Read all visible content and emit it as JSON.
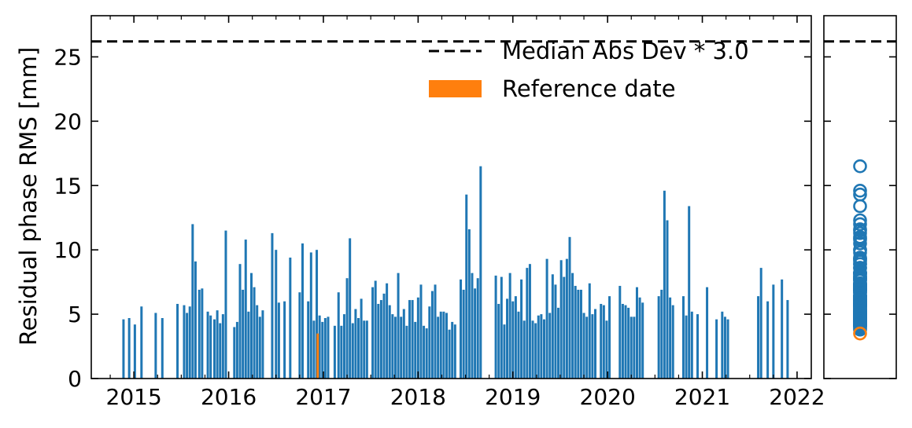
{
  "chart_data": {
    "type": "bar",
    "ylabel": "Residual phase RMS [mm]",
    "ylim": [
      0,
      28.2
    ],
    "xlim": [
      2014.55,
      2022.15
    ],
    "y_ticks": [
      "0",
      "5",
      "10",
      "15",
      "20",
      "25"
    ],
    "x_ticks": [
      "2015",
      "2016",
      "2017",
      "2018",
      "2019",
      "2020",
      "2021",
      "2022"
    ],
    "threshold": {
      "label": "Median Abs Dev * 3.0",
      "value": 26.2
    },
    "legend_position": "top-right",
    "legend": [
      {
        "label": "Median Abs Dev * 3.0",
        "style": "dashed-line",
        "color": "#000000"
      },
      {
        "label": "Reference date",
        "style": "patch",
        "color": "#ff7f0e"
      }
    ],
    "reference": {
      "label": "Reference date",
      "x": 2016.94,
      "value": 3.5,
      "color": "#ff7f0e"
    },
    "series": [
      {
        "color": "#1f77b4",
        "points": [
          [
            2014.89,
            4.6
          ],
          [
            2014.95,
            4.7
          ],
          [
            2015.01,
            4.2
          ],
          [
            2015.08,
            5.6
          ],
          [
            2015.23,
            5.1
          ],
          [
            2015.3,
            4.7
          ],
          [
            2015.46,
            5.8
          ],
          [
            2015.53,
            5.7
          ],
          [
            2015.56,
            5.1
          ],
          [
            2015.59,
            5.6
          ],
          [
            2015.62,
            12.0
          ],
          [
            2015.65,
            9.1
          ],
          [
            2015.69,
            6.9
          ],
          [
            2015.72,
            7.0
          ],
          [
            2015.78,
            5.2
          ],
          [
            2015.81,
            4.9
          ],
          [
            2015.85,
            4.6
          ],
          [
            2015.88,
            5.3
          ],
          [
            2015.91,
            4.3
          ],
          [
            2015.94,
            5.0
          ],
          [
            2015.97,
            11.5
          ],
          [
            2016.06,
            4.0
          ],
          [
            2016.09,
            4.4
          ],
          [
            2016.12,
            8.9
          ],
          [
            2016.15,
            6.9
          ],
          [
            2016.18,
            10.8
          ],
          [
            2016.21,
            5.2
          ],
          [
            2016.24,
            8.2
          ],
          [
            2016.27,
            7.1
          ],
          [
            2016.3,
            5.7
          ],
          [
            2016.33,
            4.8
          ],
          [
            2016.36,
            5.3
          ],
          [
            2016.46,
            11.3
          ],
          [
            2016.5,
            10.0
          ],
          [
            2016.53,
            5.9
          ],
          [
            2016.59,
            6.0
          ],
          [
            2016.65,
            9.4
          ],
          [
            2016.75,
            6.7
          ],
          [
            2016.78,
            10.5
          ],
          [
            2016.84,
            6.0
          ],
          [
            2016.87,
            9.8
          ],
          [
            2016.9,
            4.5
          ],
          [
            2016.93,
            10.0
          ],
          [
            2016.96,
            4.9
          ],
          [
            2016.99,
            4.4
          ],
          [
            2017.02,
            4.7
          ],
          [
            2017.05,
            4.8
          ],
          [
            2017.12,
            4.1
          ],
          [
            2017.16,
            6.7
          ],
          [
            2017.19,
            4.1
          ],
          [
            2017.22,
            5.0
          ],
          [
            2017.25,
            7.8
          ],
          [
            2017.28,
            10.9
          ],
          [
            2017.31,
            4.3
          ],
          [
            2017.34,
            5.4
          ],
          [
            2017.37,
            4.7
          ],
          [
            2017.4,
            6.2
          ],
          [
            2017.43,
            4.5
          ],
          [
            2017.46,
            4.5
          ],
          [
            2017.52,
            7.1
          ],
          [
            2017.55,
            7.6
          ],
          [
            2017.58,
            5.8
          ],
          [
            2017.61,
            6.1
          ],
          [
            2017.64,
            6.6
          ],
          [
            2017.67,
            7.4
          ],
          [
            2017.7,
            5.7
          ],
          [
            2017.73,
            5.0
          ],
          [
            2017.76,
            4.8
          ],
          [
            2017.79,
            8.2
          ],
          [
            2017.82,
            4.8
          ],
          [
            2017.85,
            5.4
          ],
          [
            2017.88,
            4.1
          ],
          [
            2017.91,
            6.1
          ],
          [
            2017.94,
            6.1
          ],
          [
            2017.97,
            4.4
          ],
          [
            2018.0,
            6.3
          ],
          [
            2018.03,
            7.3
          ],
          [
            2018.06,
            4.1
          ],
          [
            2018.09,
            3.9
          ],
          [
            2018.12,
            5.6
          ],
          [
            2018.15,
            6.8
          ],
          [
            2018.18,
            7.3
          ],
          [
            2018.21,
            4.8
          ],
          [
            2018.24,
            5.2
          ],
          [
            2018.27,
            5.2
          ],
          [
            2018.3,
            5.1
          ],
          [
            2018.33,
            3.8
          ],
          [
            2018.36,
            4.4
          ],
          [
            2018.39,
            4.2
          ],
          [
            2018.45,
            7.7
          ],
          [
            2018.48,
            6.9
          ],
          [
            2018.51,
            14.3
          ],
          [
            2018.54,
            11.6
          ],
          [
            2018.57,
            8.2
          ],
          [
            2018.6,
            7.0
          ],
          [
            2018.63,
            7.8
          ],
          [
            2018.66,
            16.5
          ],
          [
            2018.82,
            8.0
          ],
          [
            2018.85,
            5.8
          ],
          [
            2018.88,
            7.9
          ],
          [
            2018.91,
            4.2
          ],
          [
            2018.94,
            6.2
          ],
          [
            2018.97,
            8.2
          ],
          [
            2019.0,
            6.0
          ],
          [
            2019.03,
            6.4
          ],
          [
            2019.06,
            5.2
          ],
          [
            2019.09,
            7.7
          ],
          [
            2019.12,
            4.5
          ],
          [
            2019.15,
            8.6
          ],
          [
            2019.18,
            8.9
          ],
          [
            2019.21,
            4.5
          ],
          [
            2019.24,
            4.3
          ],
          [
            2019.27,
            4.9
          ],
          [
            2019.3,
            5.0
          ],
          [
            2019.33,
            4.6
          ],
          [
            2019.36,
            9.3
          ],
          [
            2019.39,
            5.1
          ],
          [
            2019.42,
            8.1
          ],
          [
            2019.45,
            7.3
          ],
          [
            2019.48,
            5.5
          ],
          [
            2019.51,
            9.2
          ],
          [
            2019.54,
            7.9
          ],
          [
            2019.57,
            9.3
          ],
          [
            2019.6,
            11.0
          ],
          [
            2019.63,
            8.2
          ],
          [
            2019.66,
            7.2
          ],
          [
            2019.69,
            6.9
          ],
          [
            2019.72,
            6.9
          ],
          [
            2019.75,
            5.1
          ],
          [
            2019.78,
            4.8
          ],
          [
            2019.81,
            7.4
          ],
          [
            2019.84,
            5.0
          ],
          [
            2019.87,
            5.4
          ],
          [
            2019.93,
            5.8
          ],
          [
            2019.96,
            5.7
          ],
          [
            2019.99,
            4.5
          ],
          [
            2020.02,
            6.4
          ],
          [
            2020.13,
            7.2
          ],
          [
            2020.16,
            5.8
          ],
          [
            2020.19,
            5.7
          ],
          [
            2020.22,
            5.5
          ],
          [
            2020.25,
            4.8
          ],
          [
            2020.28,
            4.8
          ],
          [
            2020.31,
            7.1
          ],
          [
            2020.34,
            6.3
          ],
          [
            2020.37,
            5.9
          ],
          [
            2020.54,
            6.4
          ],
          [
            2020.57,
            6.9
          ],
          [
            2020.6,
            14.6
          ],
          [
            2020.63,
            12.3
          ],
          [
            2020.66,
            6.3
          ],
          [
            2020.69,
            5.7
          ],
          [
            2020.8,
            6.4
          ],
          [
            2020.83,
            4.9
          ],
          [
            2020.86,
            13.4
          ],
          [
            2020.89,
            5.2
          ],
          [
            2020.95,
            5.0
          ],
          [
            2021.05,
            7.1
          ],
          [
            2021.15,
            4.6
          ],
          [
            2021.21,
            5.2
          ],
          [
            2021.24,
            4.8
          ],
          [
            2021.27,
            4.6
          ],
          [
            2021.59,
            6.4
          ],
          [
            2021.62,
            8.6
          ],
          [
            2021.69,
            6.0
          ],
          [
            2021.75,
            7.3
          ],
          [
            2021.84,
            7.7
          ],
          [
            2021.9,
            6.1
          ]
        ]
      }
    ]
  }
}
